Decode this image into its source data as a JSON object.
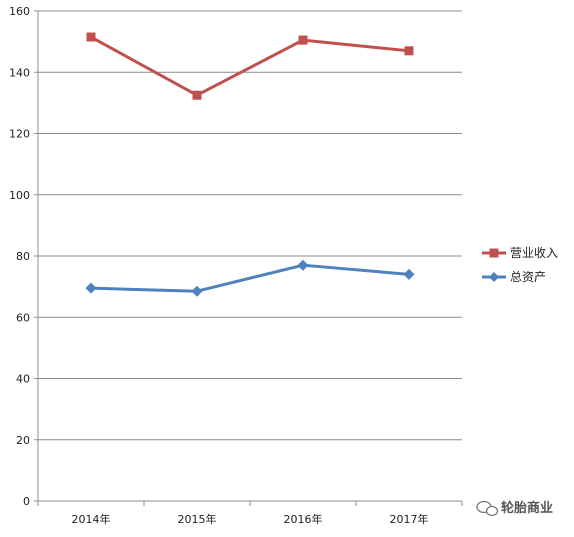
{
  "chart_data": {
    "type": "line",
    "title": "",
    "xlabel": "",
    "ylabel": "",
    "categories": [
      "2014年",
      "2015年",
      "2016年",
      "2017年"
    ],
    "ylim": [
      0,
      160
    ],
    "yticks": [
      0,
      20,
      40,
      60,
      80,
      100,
      120,
      140,
      160
    ],
    "grid": true,
    "legend_position": "right",
    "series": [
      {
        "name": "营业收入",
        "color": "#c0504d",
        "marker": "square",
        "values": [
          151.5,
          132.5,
          150.5,
          147
        ]
      },
      {
        "name": "总资产",
        "color": "#4f81bd",
        "marker": "diamond",
        "values": [
          69.5,
          68.5,
          77,
          74
        ]
      }
    ]
  },
  "watermark": {
    "text": "轮胎商业",
    "icon": "wechat-icon"
  }
}
